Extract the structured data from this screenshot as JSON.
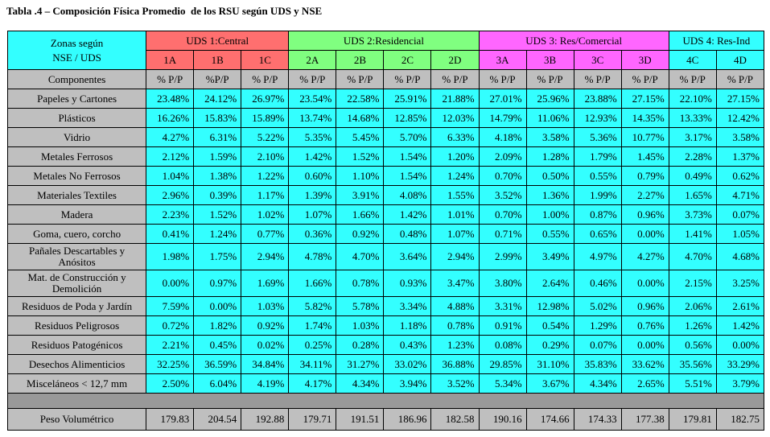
{
  "title": "Tabla .4 – Composición Física Promedio  de los RSU según UDS y NSE",
  "header": {
    "zone_label_line1": "Zonas  según",
    "zone_label_line2": "NSE / UDS",
    "groups": [
      {
        "name": "UDS 1:Central",
        "color": "#ff6f6f",
        "span": 3
      },
      {
        "name": "UDS 2:Residencial",
        "color": "#80ff80",
        "span": 4
      },
      {
        "name": "UDS 3: Res/Comercial",
        "color": "#ff66ff",
        "span": 4
      },
      {
        "name": "UDS 4: Res-Ind",
        "color": "#33ffff",
        "span": 2
      }
    ],
    "columns": [
      "1A",
      "1B",
      "1C",
      "2A",
      "2B",
      "2C",
      "2D",
      "3A",
      "3B",
      "3C",
      "3D",
      "4C",
      "4D"
    ],
    "components_label": "Componentes",
    "units": [
      "% P/P",
      "%P/P",
      "% P/P",
      "% P/P",
      "% P/P",
      "% P/P",
      "% P/P",
      "% P/P",
      "% P/P",
      "% P/P",
      "% P/P",
      "% P/P",
      "% P/P"
    ]
  },
  "rows": [
    {
      "label": "Papeles y Cartones",
      "values": [
        "23.48%",
        "24.12%",
        "26.97%",
        "23.54%",
        "22.58%",
        "25.91%",
        "21.88%",
        "27.01%",
        "25.96%",
        "23.88%",
        "27.15%",
        "22.10%",
        "27.15%"
      ]
    },
    {
      "label": "Plásticos",
      "values": [
        "16.26%",
        "15.83%",
        "15.89%",
        "13.74%",
        "14.68%",
        "12.85%",
        "12.03%",
        "14.79%",
        "11.06%",
        "12.93%",
        "14.35%",
        "13.33%",
        "12.42%"
      ]
    },
    {
      "label": "Vidrio",
      "values": [
        "4.27%",
        "6.31%",
        "5.22%",
        "5.35%",
        "5.45%",
        "5.70%",
        "6.33%",
        "4.18%",
        "3.58%",
        "5.36%",
        "10.77%",
        "3.17%",
        "3.58%"
      ]
    },
    {
      "label": "Metales Ferrosos",
      "values": [
        "2.12%",
        "1.59%",
        "2.10%",
        "1.42%",
        "1.52%",
        "1.54%",
        "1.20%",
        "2.09%",
        "1.28%",
        "1.79%",
        "1.45%",
        "2.28%",
        "1.37%"
      ]
    },
    {
      "label": "Metales No Ferrosos",
      "values": [
        "1.04%",
        "1.38%",
        "1.22%",
        "0.60%",
        "1.10%",
        "1.54%",
        "1.24%",
        "0.70%",
        "0.50%",
        "0.55%",
        "0.79%",
        "0.49%",
        "0.62%"
      ]
    },
    {
      "label": "Materiales Textiles",
      "values": [
        "2.96%",
        "0.39%",
        "1.17%",
        "1.39%",
        "3.91%",
        "4.08%",
        "1.55%",
        "3.52%",
        "1.36%",
        "1.99%",
        "2.27%",
        "1.65%",
        "4.71%"
      ]
    },
    {
      "label": "Madera",
      "values": [
        "2.23%",
        "1.52%",
        "1.02%",
        "1.07%",
        "1.66%",
        "1.42%",
        "1.01%",
        "0.70%",
        "1.00%",
        "0.87%",
        "0.96%",
        "3.73%",
        "0.07%"
      ]
    },
    {
      "label": "Goma, cuero, corcho",
      "values": [
        "0.41%",
        "1.24%",
        "0.77%",
        "0.36%",
        "0.92%",
        "0.48%",
        "1.07%",
        "0.71%",
        "0.55%",
        "0.65%",
        "0.00%",
        "1.41%",
        "1.05%"
      ]
    },
    {
      "label": "Pañales Descartables y Anósitos",
      "tall": true,
      "values": [
        "1.98%",
        "1.75%",
        "2.94%",
        "4.78%",
        "4.70%",
        "3.64%",
        "2.94%",
        "2.99%",
        "3.49%",
        "4.97%",
        "4.27%",
        "4.70%",
        "4.68%"
      ]
    },
    {
      "label": "Mat. de Construcción y Demolición",
      "tall": true,
      "values": [
        "0.00%",
        "0.97%",
        "1.69%",
        "1.66%",
        "0.78%",
        "0.93%",
        "3.47%",
        "3.80%",
        "2.64%",
        "0.46%",
        "0.00%",
        "2.15%",
        "3.25%"
      ]
    },
    {
      "label": "Residuos de Poda y Jardín",
      "values": [
        "7.59%",
        "0.00%",
        "1.03%",
        "5.82%",
        "5.78%",
        "3.34%",
        "4.88%",
        "3.31%",
        "12.98%",
        "5.02%",
        "0.96%",
        "2.06%",
        "2.61%"
      ]
    },
    {
      "label": "Residuos Peligrosos",
      "values": [
        "0.72%",
        "1.82%",
        "0.92%",
        "1.74%",
        "1.03%",
        "1.18%",
        "0.78%",
        "0.91%",
        "0.54%",
        "1.29%",
        "0.76%",
        "1.26%",
        "1.42%"
      ]
    },
    {
      "label": "Residuos Patogénicos",
      "values": [
        "2.21%",
        "0.45%",
        "0.02%",
        "0.25%",
        "0.28%",
        "0.43%",
        "1.23%",
        "0.08%",
        "0.29%",
        "0.07%",
        "0.00%",
        "0.56%",
        "0.00%"
      ]
    },
    {
      "label": "Desechos Alimenticios",
      "values": [
        "32.25%",
        "36.59%",
        "34.84%",
        "34.11%",
        "31.27%",
        "33.02%",
        "36.88%",
        "29.85%",
        "31.10%",
        "35.83%",
        "33.62%",
        "35.56%",
        "33.29%"
      ]
    },
    {
      "label": "Misceláneos < 12,7 mm",
      "values": [
        "2.50%",
        "6.04%",
        "4.19%",
        "4.17%",
        "4.34%",
        "3.94%",
        "3.52%",
        "5.34%",
        "3.67%",
        "4.34%",
        "2.65%",
        "5.51%",
        "3.79%"
      ]
    }
  ],
  "footer": {
    "label": "Peso Volumétrico",
    "values": [
      "179.83",
      "204.54",
      "192.88",
      "179.71",
      "191.51",
      "186.96",
      "182.58",
      "190.16",
      "174.66",
      "174.33",
      "177.38",
      "179.81",
      "182.75"
    ]
  }
}
